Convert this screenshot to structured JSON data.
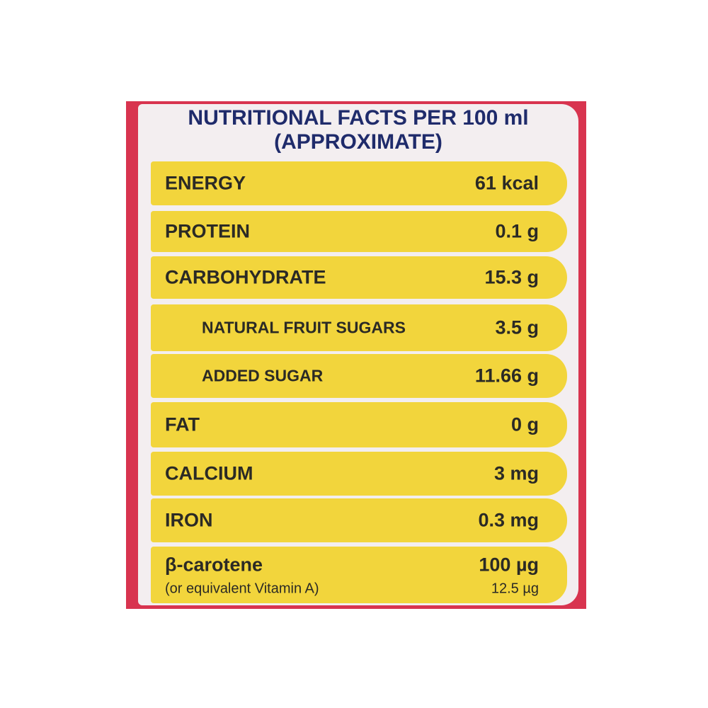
{
  "header": {
    "title": "NUTRITIONAL FACTS PER 100 ml",
    "subtitle": "(APPROXIMATE)"
  },
  "table": {
    "rows": [
      {
        "label": "ENERGY",
        "value": "61 kcal"
      },
      {
        "label": "PROTEIN",
        "value": "0.1 g"
      },
      {
        "label": "CARBOHYDRATE",
        "value": "15.3 g"
      },
      {
        "label": "NATURAL FRUIT SUGARS",
        "value": "3.5 g"
      },
      {
        "label": "ADDED SUGAR",
        "value": "11.66 g"
      },
      {
        "label": "FAT",
        "value": "0 g"
      },
      {
        "label": "CALCIUM",
        "value": "3 mg"
      },
      {
        "label": "IRON",
        "value": "0.3 mg"
      },
      {
        "label": "β-carotene",
        "value": "100 µg",
        "sublabel": "(or equivalent Vitamin A)",
        "subvalue": "12.5 µg"
      }
    ]
  }
}
